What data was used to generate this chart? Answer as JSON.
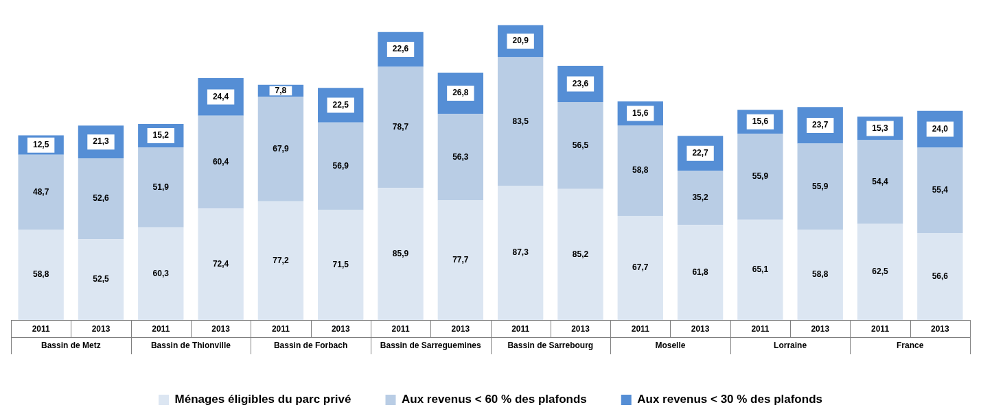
{
  "chart_data": {
    "type": "bar",
    "stacked": true,
    "legend": "bottom",
    "categories": [
      "2011",
      "2013",
      "2011",
      "2013",
      "2011",
      "2013",
      "2011",
      "2013",
      "2011",
      "2013",
      "2011",
      "2013",
      "2011",
      "2013",
      "2011",
      "2013"
    ],
    "annotations": [
      "Bassin de Metz",
      "Bassin de Thionville",
      "Bassin de Forbach",
      "Bassin de Sarreguemines",
      "Bassin de Sarrebourg",
      "Moselle",
      "Lorraine",
      "France"
    ],
    "series": [
      {
        "name": "Ménages éligibles du parc privé",
        "color": "#dce6f2",
        "values": [
          58.8,
          52.5,
          60.3,
          72.4,
          77.2,
          71.5,
          85.9,
          77.7,
          87.3,
          85.2,
          67.7,
          61.8,
          65.1,
          58.8,
          62.5,
          56.6
        ],
        "value_labels": [
          "58,8",
          "52,5",
          "60,3",
          "72,4",
          "77,2",
          "71,5",
          "85,9",
          "77,7",
          "87,3",
          "85,2",
          "67,7",
          "61,8",
          "65,1",
          "58,8",
          "62,5",
          "56,6"
        ]
      },
      {
        "name": "Aux revenus < 60 % des plafonds",
        "color": "#b9cde5",
        "values": [
          48.7,
          52.6,
          51.9,
          60.4,
          67.9,
          56.9,
          78.7,
          56.3,
          83.5,
          56.5,
          58.8,
          35.2,
          55.9,
          55.9,
          54.4,
          55.4
        ],
        "value_labels": [
          "48,7",
          "52,6",
          "51,9",
          "60,4",
          "67,9",
          "56,9",
          "78,7",
          "56,3",
          "83,5",
          "56,5",
          "58,8",
          "35,2",
          "55,9",
          "55,9",
          "54,4",
          "55,4"
        ]
      },
      {
        "name": "Aux revenus < 30 % des plafonds",
        "color": "#558ed5",
        "values": [
          12.5,
          21.3,
          15.2,
          24.4,
          7.8,
          22.5,
          22.6,
          26.8,
          20.9,
          23.6,
          15.6,
          22.7,
          15.6,
          23.7,
          15.3,
          24.0
        ],
        "value_labels": [
          "12,5",
          "21,3",
          "15,2",
          "24,4",
          "7,8",
          "22,5",
          "22,6",
          "26,8",
          "20,9",
          "23,6",
          "15,6",
          "22,7",
          "15,6",
          "23,7",
          "15,3",
          "24,0"
        ]
      }
    ]
  }
}
